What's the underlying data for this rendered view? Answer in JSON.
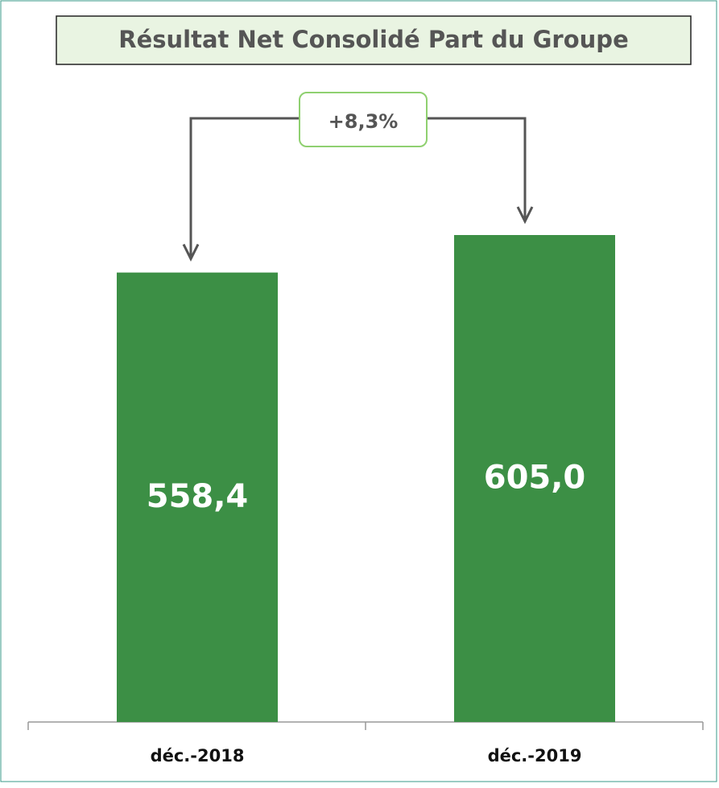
{
  "chart_data": {
    "type": "bar",
    "title": "Résultat Net Consolidé Part du Groupe",
    "categories": [
      "déc.-2018",
      "déc.-2019"
    ],
    "values": [
      558.4,
      605.0
    ],
    "value_labels": [
      "558,4",
      "605,0"
    ],
    "color": "#3c8f45",
    "annotation": "+8,3%"
  }
}
